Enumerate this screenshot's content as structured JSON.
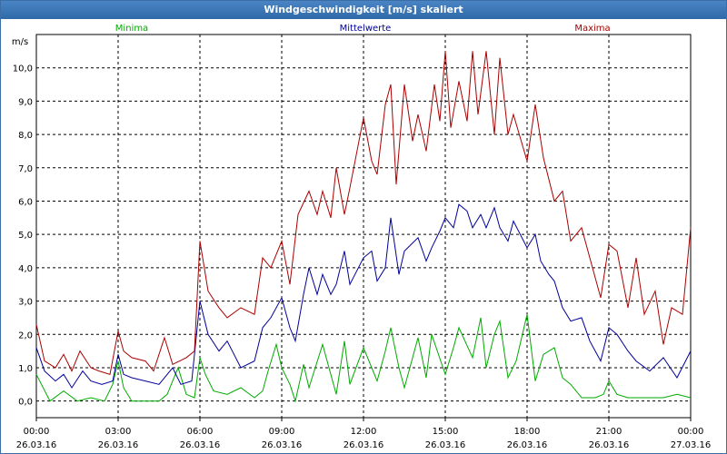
{
  "window": {
    "title": "Windgeschwindigkeit [m/s] skaliert"
  },
  "chart_data": {
    "type": "line",
    "title": "Windgeschwindigkeit [m/s] skaliert",
    "ylabel": "m/s",
    "xlabel": "",
    "ylim": [
      -0.5,
      11.0
    ],
    "xlim_hours": [
      0,
      24
    ],
    "yticks": [
      "0,0",
      "1,0",
      "2,0",
      "3,0",
      "4,0",
      "5,0",
      "6,0",
      "7,0",
      "8,0",
      "9,0",
      "10,0"
    ],
    "ytick_values": [
      0,
      1,
      2,
      3,
      4,
      5,
      6,
      7,
      8,
      9,
      10
    ],
    "xticks": [
      {
        "time": "00:00",
        "date": "26.03.16"
      },
      {
        "time": "03:00",
        "date": "26.03.16"
      },
      {
        "time": "06:00",
        "date": "26.03.16"
      },
      {
        "time": "09:00",
        "date": "26.03.16"
      },
      {
        "time": "12:00",
        "date": "26.03.16"
      },
      {
        "time": "15:00",
        "date": "26.03.16"
      },
      {
        "time": "18:00",
        "date": "26.03.16"
      },
      {
        "time": "21:00",
        "date": "26.03.16"
      },
      {
        "time": "00:00",
        "date": "27.03.16"
      }
    ],
    "grid": true,
    "legend": "top",
    "series": [
      {
        "name": "Minima",
        "color": "#00aa00",
        "values": [
          [
            0,
            0.8
          ],
          [
            0.5,
            0.0
          ],
          [
            1,
            0.3
          ],
          [
            1.5,
            0.0
          ],
          [
            2,
            0.1
          ],
          [
            2.5,
            0.0
          ],
          [
            2.8,
            0.5
          ],
          [
            3,
            1.2
          ],
          [
            3.2,
            0.4
          ],
          [
            3.5,
            0.0
          ],
          [
            4,
            0.0
          ],
          [
            4.5,
            0.0
          ],
          [
            4.8,
            0.2
          ],
          [
            5,
            0.6
          ],
          [
            5.2,
            1.0
          ],
          [
            5.5,
            0.2
          ],
          [
            5.8,
            0.1
          ],
          [
            6,
            1.3
          ],
          [
            6.2,
            0.8
          ],
          [
            6.5,
            0.3
          ],
          [
            7,
            0.2
          ],
          [
            7.5,
            0.4
          ],
          [
            8,
            0.1
          ],
          [
            8.3,
            0.3
          ],
          [
            8.5,
            0.9
          ],
          [
            8.8,
            1.7
          ],
          [
            9,
            1.0
          ],
          [
            9.3,
            0.5
          ],
          [
            9.5,
            0.0
          ],
          [
            9.8,
            1.1
          ],
          [
            10,
            0.4
          ],
          [
            10.5,
            1.7
          ],
          [
            11,
            0.2
          ],
          [
            11.3,
            1.8
          ],
          [
            11.5,
            0.5
          ],
          [
            12,
            1.6
          ],
          [
            12.5,
            0.6
          ],
          [
            12.8,
            1.5
          ],
          [
            13,
            2.2
          ],
          [
            13.3,
            1.0
          ],
          [
            13.5,
            0.4
          ],
          [
            14,
            1.9
          ],
          [
            14.3,
            0.7
          ],
          [
            14.5,
            2.0
          ],
          [
            15,
            0.8
          ],
          [
            15.3,
            1.6
          ],
          [
            15.5,
            2.2
          ],
          [
            16,
            1.3
          ],
          [
            16.3,
            2.5
          ],
          [
            16.5,
            1.0
          ],
          [
            16.8,
            2.0
          ],
          [
            17,
            2.4
          ],
          [
            17.3,
            0.7
          ],
          [
            17.6,
            1.2
          ],
          [
            18,
            2.6
          ],
          [
            18.3,
            0.6
          ],
          [
            18.6,
            1.4
          ],
          [
            19,
            1.6
          ],
          [
            19.3,
            0.7
          ],
          [
            19.6,
            0.5
          ],
          [
            20,
            0.1
          ],
          [
            20.5,
            0.1
          ],
          [
            20.8,
            0.2
          ],
          [
            21,
            0.6
          ],
          [
            21.3,
            0.2
          ],
          [
            21.7,
            0.1
          ],
          [
            22,
            0.1
          ],
          [
            22.5,
            0.1
          ],
          [
            23,
            0.1
          ],
          [
            23.5,
            0.2
          ],
          [
            24,
            0.1
          ]
        ]
      },
      {
        "name": "Mittelwerte",
        "color": "#000099",
        "values": [
          [
            0,
            1.6
          ],
          [
            0.3,
            0.9
          ],
          [
            0.7,
            0.6
          ],
          [
            1,
            0.8
          ],
          [
            1.3,
            0.4
          ],
          [
            1.7,
            0.9
          ],
          [
            2,
            0.6
          ],
          [
            2.4,
            0.5
          ],
          [
            2.8,
            0.6
          ],
          [
            3,
            1.4
          ],
          [
            3.2,
            0.8
          ],
          [
            3.5,
            0.7
          ],
          [
            4,
            0.6
          ],
          [
            4.5,
            0.5
          ],
          [
            5,
            1.0
          ],
          [
            5.3,
            0.5
          ],
          [
            5.7,
            0.6
          ],
          [
            6,
            3.0
          ],
          [
            6.3,
            2.0
          ],
          [
            6.7,
            1.5
          ],
          [
            7,
            1.8
          ],
          [
            7.5,
            1.0
          ],
          [
            8,
            1.2
          ],
          [
            8.3,
            2.2
          ],
          [
            8.6,
            2.5
          ],
          [
            9,
            3.1
          ],
          [
            9.3,
            2.2
          ],
          [
            9.5,
            1.8
          ],
          [
            9.8,
            3.2
          ],
          [
            10,
            4.0
          ],
          [
            10.3,
            3.2
          ],
          [
            10.5,
            3.8
          ],
          [
            10.8,
            3.2
          ],
          [
            11,
            3.5
          ],
          [
            11.3,
            4.5
          ],
          [
            11.5,
            3.5
          ],
          [
            12,
            4.3
          ],
          [
            12.3,
            4.5
          ],
          [
            12.5,
            3.6
          ],
          [
            12.8,
            4.0
          ],
          [
            13,
            5.5
          ],
          [
            13.3,
            3.8
          ],
          [
            13.5,
            4.5
          ],
          [
            14,
            4.9
          ],
          [
            14.3,
            4.2
          ],
          [
            14.5,
            4.6
          ],
          [
            14.8,
            5.1
          ],
          [
            15,
            5.5
          ],
          [
            15.3,
            5.2
          ],
          [
            15.5,
            5.9
          ],
          [
            15.8,
            5.7
          ],
          [
            16,
            5.2
          ],
          [
            16.3,
            5.6
          ],
          [
            16.5,
            5.2
          ],
          [
            16.8,
            5.8
          ],
          [
            17,
            5.2
          ],
          [
            17.3,
            4.8
          ],
          [
            17.5,
            5.4
          ],
          [
            18,
            4.6
          ],
          [
            18.3,
            5.0
          ],
          [
            18.5,
            4.2
          ],
          [
            18.8,
            3.8
          ],
          [
            19,
            3.6
          ],
          [
            19.3,
            2.8
          ],
          [
            19.6,
            2.4
          ],
          [
            20,
            2.5
          ],
          [
            20.3,
            1.8
          ],
          [
            20.7,
            1.2
          ],
          [
            21,
            2.2
          ],
          [
            21.3,
            2.0
          ],
          [
            21.7,
            1.5
          ],
          [
            22,
            1.2
          ],
          [
            22.5,
            0.9
          ],
          [
            23,
            1.3
          ],
          [
            23.5,
            0.7
          ],
          [
            24,
            1.5
          ]
        ]
      },
      {
        "name": "Maxima",
        "color": "#aa0000",
        "values": [
          [
            0,
            2.3
          ],
          [
            0.3,
            1.2
          ],
          [
            0.7,
            1.0
          ],
          [
            1,
            1.4
          ],
          [
            1.3,
            0.9
          ],
          [
            1.6,
            1.5
          ],
          [
            2,
            1.0
          ],
          [
            2.3,
            0.9
          ],
          [
            2.7,
            0.8
          ],
          [
            3,
            2.1
          ],
          [
            3.2,
            1.5
          ],
          [
            3.5,
            1.3
          ],
          [
            4,
            1.2
          ],
          [
            4.3,
            0.9
          ],
          [
            4.7,
            1.9
          ],
          [
            5,
            1.1
          ],
          [
            5.5,
            1.3
          ],
          [
            5.8,
            1.5
          ],
          [
            6,
            4.8
          ],
          [
            6.3,
            3.3
          ],
          [
            6.7,
            2.8
          ],
          [
            7,
            2.5
          ],
          [
            7.5,
            2.8
          ],
          [
            8,
            2.6
          ],
          [
            8.3,
            4.3
          ],
          [
            8.6,
            4.0
          ],
          [
            9,
            4.8
          ],
          [
            9.3,
            3.5
          ],
          [
            9.6,
            5.6
          ],
          [
            10,
            6.3
          ],
          [
            10.3,
            5.6
          ],
          [
            10.5,
            6.3
          ],
          [
            10.8,
            5.5
          ],
          [
            11,
            7.0
          ],
          [
            11.3,
            5.6
          ],
          [
            11.5,
            6.4
          ],
          [
            12,
            8.5
          ],
          [
            12.3,
            7.2
          ],
          [
            12.5,
            6.8
          ],
          [
            12.8,
            8.9
          ],
          [
            13,
            9.5
          ],
          [
            13.2,
            6.5
          ],
          [
            13.5,
            9.5
          ],
          [
            13.8,
            7.8
          ],
          [
            14,
            8.6
          ],
          [
            14.3,
            7.5
          ],
          [
            14.6,
            9.5
          ],
          [
            14.8,
            8.4
          ],
          [
            15,
            10.5
          ],
          [
            15.2,
            8.2
          ],
          [
            15.5,
            9.6
          ],
          [
            15.8,
            8.4
          ],
          [
            16,
            10.5
          ],
          [
            16.2,
            8.6
          ],
          [
            16.5,
            10.5
          ],
          [
            16.8,
            8.0
          ],
          [
            17,
            10.3
          ],
          [
            17.3,
            8.0
          ],
          [
            17.5,
            8.6
          ],
          [
            18,
            7.2
          ],
          [
            18.3,
            8.9
          ],
          [
            18.6,
            7.3
          ],
          [
            19,
            6.0
          ],
          [
            19.3,
            6.3
          ],
          [
            19.6,
            4.8
          ],
          [
            20,
            5.2
          ],
          [
            20.3,
            4.3
          ],
          [
            20.7,
            3.1
          ],
          [
            21,
            4.7
          ],
          [
            21.3,
            4.5
          ],
          [
            21.7,
            2.8
          ],
          [
            22,
            4.3
          ],
          [
            22.3,
            2.6
          ],
          [
            22.7,
            3.3
          ],
          [
            23,
            1.7
          ],
          [
            23.3,
            2.8
          ],
          [
            23.7,
            2.6
          ],
          [
            24,
            5.2
          ]
        ]
      }
    ]
  }
}
